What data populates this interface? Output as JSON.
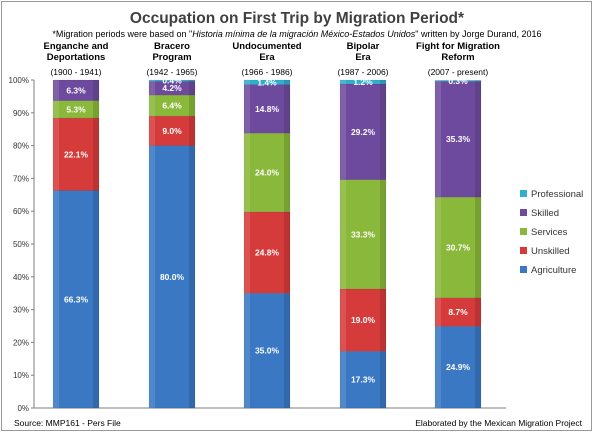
{
  "chart_data": {
    "type": "bar",
    "stacked": true,
    "title": "Occupation on First Trip by Migration Period*",
    "subtitle_parts": [
      "*Migration periods were based on \"",
      "Historia mínima de la migración México-Estados Unidos",
      "\" written by Jorge Durand, 2016"
    ],
    "categories": [
      {
        "name_lines": [
          "Enganche and",
          "Deportations"
        ],
        "years": "(1900 - 1941)"
      },
      {
        "name_lines": [
          "Bracero",
          "Program"
        ],
        "years": "(1942 - 1965)"
      },
      {
        "name_lines": [
          "Undocumented",
          "Era"
        ],
        "years": "(1966 - 1986)"
      },
      {
        "name_lines": [
          "Bipolar",
          "Era"
        ],
        "years": "(1987 - 2006)"
      },
      {
        "name_lines": [
          "Fight for Migration",
          "Reform"
        ],
        "years": "(2007 - present)"
      }
    ],
    "series": [
      {
        "name": "Agriculture",
        "color": "#3a78c3",
        "values": [
          66.3,
          80.0,
          35.0,
          17.3,
          24.9
        ],
        "labels": [
          "66.3%",
          "80.0%",
          "35.0%",
          "17.3%",
          "24.9%"
        ]
      },
      {
        "name": "Unskilled",
        "color": "#d63b3b",
        "values": [
          22.1,
          9.0,
          24.8,
          19.0,
          8.7
        ],
        "labels": [
          "22.1%",
          "9.0%",
          "24.8%",
          "19.0%",
          "8.7%"
        ]
      },
      {
        "name": "Services",
        "color": "#8ab83a",
        "values": [
          5.3,
          6.4,
          24.0,
          33.3,
          30.7
        ],
        "labels": [
          "5.3%",
          "6.4%",
          "24.0%",
          "33.3%",
          "30.7%"
        ]
      },
      {
        "name": "Skilled",
        "color": "#6e4a9e",
        "values": [
          6.3,
          4.2,
          14.8,
          29.2,
          35.3
        ],
        "labels": [
          "6.3%",
          "4.2%",
          "14.8%",
          "29.2%",
          "35.3%"
        ]
      },
      {
        "name": "Professional",
        "color": "#2fb0cf",
        "values": [
          0.0,
          0.4,
          1.4,
          1.2,
          0.3
        ],
        "labels": [
          "",
          "0.4%",
          "1.4%",
          "1.2%",
          "0.3%"
        ]
      }
    ],
    "ylim": [
      0,
      100
    ],
    "yticks": [
      "0%",
      "10%",
      "20%",
      "30%",
      "40%",
      "50%",
      "60%",
      "70%",
      "80%",
      "90%",
      "100%"
    ],
    "legend_order": [
      "Professional",
      "Skilled",
      "Services",
      "Unskilled",
      "Agriculture"
    ],
    "legend_position": "right",
    "grid": false
  },
  "footer": {
    "source": "Source: MMP161 - Pers File",
    "credit": "Elaborated by the Mexican Migration Project"
  }
}
